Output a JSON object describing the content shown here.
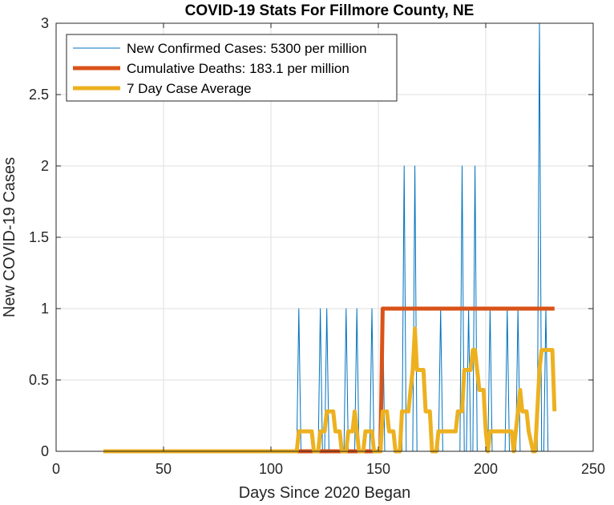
{
  "chart_data": {
    "type": "line",
    "title": "COVID-19 Stats For Fillmore County, NE",
    "xlabel": "Days Since 2020 Began",
    "ylabel": "New COVID-19 Cases",
    "xlim": [
      0,
      250
    ],
    "ylim": [
      0,
      3
    ],
    "xticks": [
      0,
      50,
      100,
      150,
      200,
      250
    ],
    "yticks": [
      0,
      0.5,
      1,
      1.5,
      2,
      2.5,
      3
    ],
    "xtick_labels": [
      "0",
      "50",
      "100",
      "150",
      "200",
      "250"
    ],
    "ytick_labels": [
      "0",
      "0.5",
      "1",
      "1.5",
      "2",
      "2.5",
      "3"
    ],
    "grid": true,
    "legend_position": "top-left",
    "series": [
      {
        "name": "New Confirmed Cases: 5300 per million",
        "color": "#0072BD",
        "stroke": "thin",
        "x": [
          22,
          112,
          113,
          114,
          122,
          123,
          124,
          125,
          126,
          127,
          134,
          135,
          136,
          139,
          140,
          141,
          146,
          147,
          148,
          151,
          152,
          153,
          161,
          162,
          163,
          166,
          167,
          168,
          178,
          179,
          180,
          188,
          189,
          190,
          191,
          192,
          193,
          194,
          195,
          196,
          201,
          202,
          203,
          209,
          210,
          211,
          214,
          215,
          216,
          224,
          225,
          226,
          227,
          228,
          229,
          232
        ],
        "y": [
          0,
          0,
          1,
          0,
          0,
          1,
          0,
          0,
          1,
          0,
          0,
          1,
          0,
          0,
          1,
          0,
          0,
          1,
          0,
          0,
          1,
          0,
          0,
          2,
          0,
          0,
          2,
          0,
          0,
          1,
          0,
          0,
          2,
          0,
          0,
          1,
          0,
          0,
          2,
          0,
          0,
          1,
          0,
          0,
          1,
          0,
          0,
          1,
          0,
          0,
          3,
          0,
          0,
          1,
          0,
          0
        ]
      },
      {
        "name": "Cumulative Deaths: 183.1 per million",
        "color": "#D95319",
        "stroke": "thick",
        "x": [
          22,
          151,
          152,
          232
        ],
        "y": [
          0,
          0,
          1,
          1
        ]
      },
      {
        "name": "7 Day Case Average",
        "color": "#EDB120",
        "stroke": "thick",
        "x": [
          22,
          112,
          113,
          119,
          120,
          122,
          123,
          125,
          126,
          129,
          130,
          132,
          133,
          135,
          136,
          138,
          139,
          140,
          141,
          143,
          144,
          147,
          148,
          151,
          152,
          154,
          155,
          157,
          158,
          160,
          161,
          164,
          165,
          166,
          167,
          168,
          169,
          171,
          172,
          174,
          175,
          177,
          178,
          180,
          181,
          186,
          187,
          189,
          190,
          192,
          193,
          194,
          195,
          196,
          197,
          199,
          200,
          201,
          202,
          203,
          206,
          207,
          211,
          212,
          213,
          214,
          215,
          216,
          217,
          219,
          220,
          222,
          223,
          224,
          225,
          226,
          227,
          228,
          229,
          231,
          232
        ],
        "y": [
          0,
          0,
          0.14,
          0.14,
          0,
          0,
          0.14,
          0.14,
          0.28,
          0.28,
          0.14,
          0.14,
          0,
          0,
          0.14,
          0.14,
          0.28,
          0.14,
          0,
          0,
          0.14,
          0.14,
          0,
          0,
          0.28,
          0.28,
          0.14,
          0.14,
          0,
          0,
          0.28,
          0.28,
          0.43,
          0.57,
          0.86,
          0.57,
          0.57,
          0.57,
          0.28,
          0.28,
          0,
          0,
          0.14,
          0.14,
          0.14,
          0.14,
          0.28,
          0.28,
          0.57,
          0.57,
          0.57,
          0.71,
          0.71,
          0.57,
          0.43,
          0.43,
          0.14,
          0,
          0.14,
          0.14,
          0.14,
          0.14,
          0.14,
          0.14,
          0,
          0.14,
          0.28,
          0.43,
          0.28,
          0.28,
          0.14,
          0,
          0,
          0.28,
          0.57,
          0.71,
          0.71,
          0.71,
          0.71,
          0.71,
          0.28
        ]
      }
    ]
  }
}
